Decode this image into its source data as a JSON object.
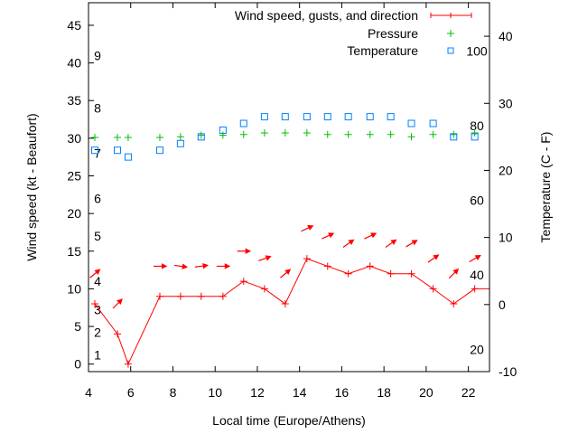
{
  "chart_data": {
    "type": "line",
    "title": "",
    "xlabel": "Local time (Europe/Athens)",
    "ylabel": "Wind speed (kt - Beaufort)",
    "y2label": "Temperature (C - F)",
    "xlim": [
      4,
      23
    ],
    "ylim": [
      -1,
      48
    ],
    "y2lim": [
      -10,
      45
    ],
    "xticks": [
      4,
      6,
      8,
      10,
      12,
      14,
      16,
      18,
      20,
      22
    ],
    "yticks": [
      0,
      5,
      10,
      15,
      20,
      25,
      30,
      35,
      40,
      45
    ],
    "y2ticks": [
      -10,
      0,
      10,
      20,
      30,
      40
    ],
    "beaufort_labels": [
      {
        "label": "1",
        "kt": 1.2
      },
      {
        "label": "2",
        "kt": 4.2
      },
      {
        "label": "3",
        "kt": 7.2
      },
      {
        "label": "4",
        "kt": 11
      },
      {
        "label": "5",
        "kt": 17
      },
      {
        "label": "6",
        "kt": 22
      },
      {
        "label": "7",
        "kt": 28
      },
      {
        "label": "8",
        "kt": 34
      },
      {
        "label": "9",
        "kt": 41
      }
    ],
    "fahrenheit_labels": [
      "20",
      "40",
      "60",
      "80",
      "100"
    ],
    "legend_position": "top-right",
    "x": [
      4.3,
      5.37,
      5.88,
      7.38,
      8.36,
      9.34,
      10.37,
      11.35,
      12.34,
      13.32,
      14.35,
      15.33,
      16.31,
      17.34,
      18.32,
      19.3,
      20.33,
      21.3,
      22.3
    ],
    "series": [
      {
        "name": "Wind speed, gusts, and direction",
        "color": "#ff0000",
        "axis": "y",
        "values": [
          8,
          4,
          0,
          9,
          9,
          9,
          9,
          11,
          10,
          8,
          14,
          13,
          12,
          13,
          12,
          12,
          10,
          8,
          10
        ],
        "gusts": [
          12,
          8,
          null,
          13,
          13,
          13,
          13,
          15,
          14,
          12,
          18,
          17,
          16,
          17,
          16,
          16,
          14,
          12,
          14
        ],
        "direction_deg": [
          40,
          45,
          null,
          0,
          -8,
          8,
          0,
          0,
          20,
          40,
          25,
          25,
          35,
          25,
          35,
          30,
          35,
          45,
          30
        ]
      },
      {
        "name": "Pressure",
        "color": "#00c000",
        "axis": "y",
        "values": [
          30.1,
          30.1,
          30.1,
          30.1,
          30.2,
          30.4,
          30.4,
          30.5,
          30.7,
          30.7,
          30.7,
          30.5,
          30.5,
          30.5,
          30.5,
          30.2,
          30.5,
          30.5,
          30.7
        ]
      },
      {
        "name": "Temperature",
        "color": "#0080ff",
        "axis": "y2",
        "values": [
          23,
          23,
          22,
          23,
          24,
          25,
          26,
          27,
          28,
          28,
          28,
          28,
          28,
          28,
          28,
          27,
          27,
          25,
          25
        ]
      }
    ]
  }
}
